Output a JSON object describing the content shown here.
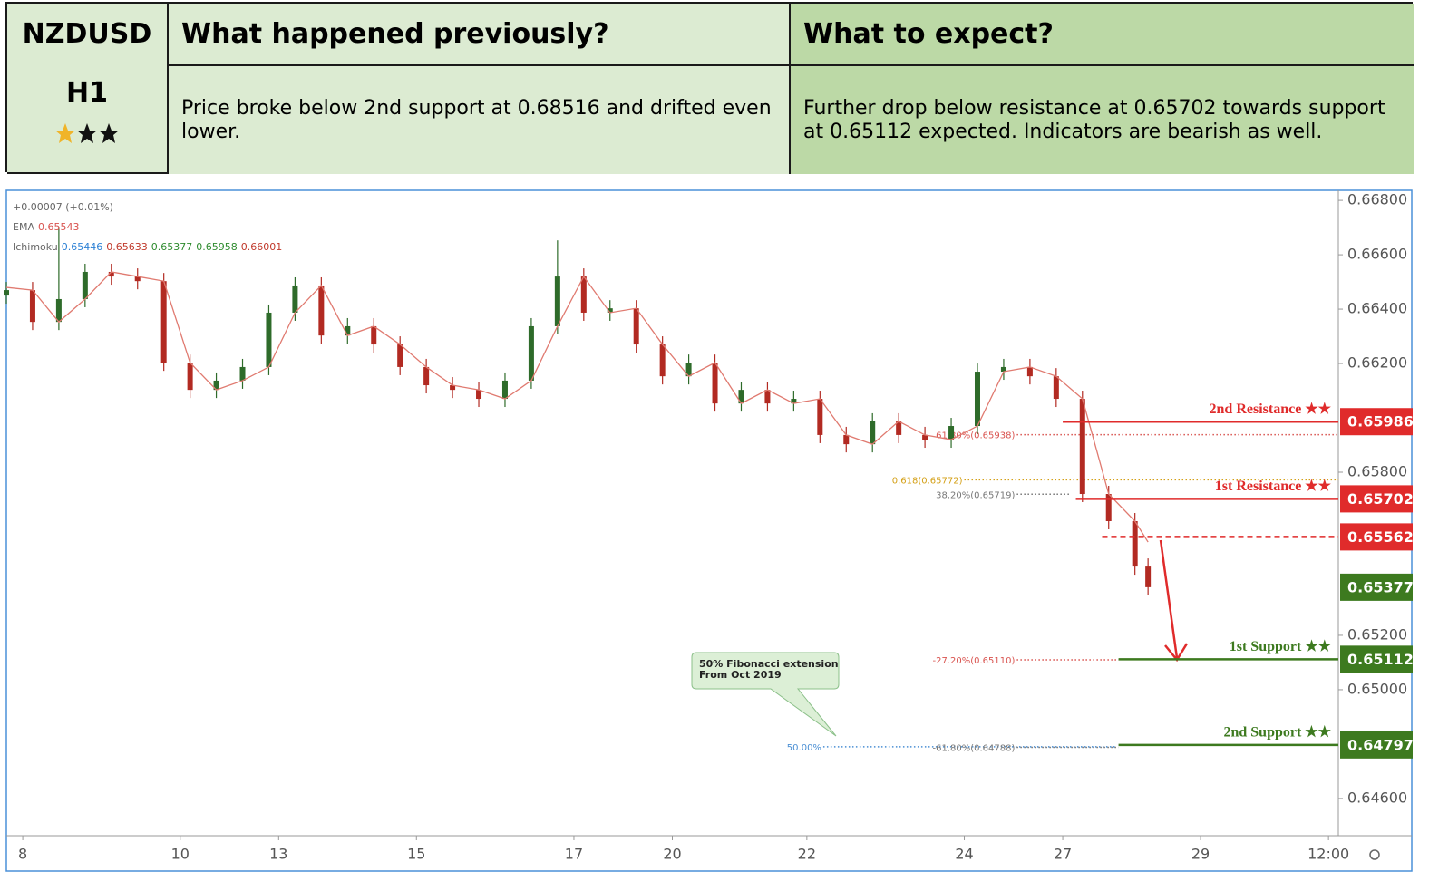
{
  "header": {
    "symbol": "NZDUSD",
    "timeframe": "H1",
    "previous_title": "What happened previously?",
    "expect_title": "What to expect?",
    "previous_text": "Price broke below 2nd support at 0.68516 and drifted even lower.",
    "expect_text": "Further drop below resistance at 0.65702 towards support at 0.65112 expected. Indicators are bearish as well."
  },
  "chart_data": {
    "type": "candlestick",
    "symbol_change": "+0.00007 (+0.01%)",
    "ema_legend": {
      "name": "EMA",
      "value": 0.65543,
      "color": "#d9534f"
    },
    "ichimoku_legend": {
      "name": "Ichimoku",
      "values": [
        0.65446,
        0.65633,
        0.65377,
        0.65958,
        0.66001
      ],
      "colors": [
        "#2a7fd4",
        "#c0392b",
        "#2e8b2e",
        "#2e8b2e",
        "#c0392b"
      ]
    },
    "x": [
      0,
      8,
      16,
      24,
      32,
      40,
      48,
      56,
      64,
      72,
      80,
      88,
      96,
      104,
      112,
      120,
      128,
      136,
      144,
      152,
      160,
      168,
      176,
      184,
      192,
      200,
      208,
      216,
      224,
      232,
      240,
      248,
      256,
      264,
      272,
      280,
      288,
      296,
      304,
      312,
      320,
      328,
      336,
      344,
      348
    ],
    "open": [
      0.6645,
      0.6647,
      0.66353,
      0.66437,
      0.66537,
      0.6652,
      0.66503,
      0.66203,
      0.66103,
      0.66137,
      0.66187,
      0.66387,
      0.66487,
      0.66303,
      0.66337,
      0.6627,
      0.66187,
      0.6612,
      0.66103,
      0.6607,
      0.66137,
      0.66337,
      0.6652,
      0.66387,
      0.66403,
      0.6627,
      0.66153,
      0.66203,
      0.66053,
      0.66103,
      0.66053,
      0.6607,
      0.65937,
      0.65903,
      0.65987,
      0.65937,
      0.6592,
      0.6597,
      0.6617,
      0.66187,
      0.66153,
      0.6607,
      0.6572,
      0.6562,
      0.65453
    ],
    "high": [
      0.665,
      0.665,
      0.66703,
      0.66567,
      0.66567,
      0.6655,
      0.66533,
      0.66233,
      0.66167,
      0.66217,
      0.66417,
      0.66517,
      0.66517,
      0.66367,
      0.66367,
      0.663,
      0.66217,
      0.6615,
      0.66133,
      0.66167,
      0.66367,
      0.66653,
      0.6655,
      0.66433,
      0.66433,
      0.663,
      0.66233,
      0.66233,
      0.66133,
      0.66133,
      0.661,
      0.661,
      0.65967,
      0.66017,
      0.66017,
      0.65967,
      0.66,
      0.662,
      0.66217,
      0.66217,
      0.66183,
      0.661,
      0.6575,
      0.6565,
      0.65483
    ],
    "low": [
      0.6642,
      0.66323,
      0.66323,
      0.66407,
      0.6649,
      0.66473,
      0.66173,
      0.66073,
      0.66073,
      0.66107,
      0.66157,
      0.66357,
      0.66273,
      0.66273,
      0.6624,
      0.66157,
      0.6609,
      0.66073,
      0.6604,
      0.6604,
      0.66107,
      0.66307,
      0.66357,
      0.66357,
      0.6624,
      0.66123,
      0.66123,
      0.66023,
      0.66023,
      0.66023,
      0.66023,
      0.65907,
      0.65873,
      0.65873,
      0.65907,
      0.6589,
      0.6589,
      0.6594,
      0.6614,
      0.66123,
      0.6604,
      0.6569,
      0.6559,
      0.65423,
      0.65347
    ],
    "close": [
      0.6647,
      0.66353,
      0.66437,
      0.66537,
      0.6652,
      0.66503,
      0.66203,
      0.66103,
      0.66137,
      0.66187,
      0.66387,
      0.66487,
      0.66303,
      0.66337,
      0.6627,
      0.66187,
      0.6612,
      0.66103,
      0.6607,
      0.66137,
      0.66337,
      0.6652,
      0.66387,
      0.66403,
      0.6627,
      0.66153,
      0.66203,
      0.66053,
      0.66103,
      0.66053,
      0.6607,
      0.65937,
      0.65903,
      0.65987,
      0.65937,
      0.6592,
      0.6597,
      0.6617,
      0.66187,
      0.66153,
      0.6607,
      0.6572,
      0.6562,
      0.65453,
      0.65377
    ],
    "ema": [
      0.6648,
      0.6647,
      0.66353,
      0.66437,
      0.66537,
      0.6652,
      0.66503,
      0.66203,
      0.66103,
      0.66137,
      0.66187,
      0.66387,
      0.66487,
      0.66303,
      0.66337,
      0.6627,
      0.66187,
      0.6612,
      0.66103,
      0.6607,
      0.66137,
      0.66337,
      0.6652,
      0.66387,
      0.66403,
      0.6627,
      0.66153,
      0.66203,
      0.66053,
      0.66103,
      0.66053,
      0.6607,
      0.65937,
      0.65903,
      0.65987,
      0.65937,
      0.6592,
      0.6597,
      0.6617,
      0.66187,
      0.66153,
      0.6607,
      0.6572,
      0.6562,
      0.65543
    ],
    "up_color": "#2e6b2a",
    "down_color": "#b22a22",
    "ema_color": "#e07a70",
    "xlim": [
      0,
      406
    ],
    "xticks": [
      {
        "value": 5,
        "label": "8"
      },
      {
        "value": 53,
        "label": "10"
      },
      {
        "value": 83,
        "label": "13"
      },
      {
        "value": 125,
        "label": "15"
      },
      {
        "value": 173,
        "label": "17"
      },
      {
        "value": 203,
        "label": "20"
      },
      {
        "value": 244,
        "label": "22"
      },
      {
        "value": 292,
        "label": "24"
      },
      {
        "value": 322,
        "label": "27"
      },
      {
        "value": 364,
        "label": "29"
      },
      {
        "value": 403,
        "label": "12:00"
      }
    ],
    "ylim": [
      0.64463,
      0.66837
    ],
    "yticks": [
      {
        "value": 0.668,
        "label": "0.66800"
      },
      {
        "value": 0.666,
        "label": "0.66600"
      },
      {
        "value": 0.664,
        "label": "0.66400"
      },
      {
        "value": 0.662,
        "label": "0.66200"
      },
      {
        "value": 0.658,
        "label": "0.65800"
      },
      {
        "value": 0.652,
        "label": "0.65200"
      },
      {
        "value": 0.65,
        "label": "0.65000"
      },
      {
        "value": 0.646,
        "label": "0.64600"
      }
    ],
    "levels": [
      {
        "name": "2nd Resistance ★★",
        "value": 0.65986,
        "color": "#e02b2b",
        "start": 322,
        "dashed": false
      },
      {
        "name": "1st Resistance ★★",
        "value": 0.65702,
        "color": "#e02b2b",
        "start": 326,
        "dashed": false
      },
      {
        "value": 0.65562,
        "color": "#e02b2b",
        "start": 334,
        "dashed": true
      },
      {
        "value": 0.65377,
        "color": "#3d7a1f"
      },
      {
        "name": "1st Support ★★",
        "value": 0.65112,
        "color": "#3d7a1f",
        "start": 339,
        "dashed": false
      },
      {
        "name": "2nd Support ★★",
        "value": 0.64797,
        "color": "#3d7a1f",
        "start": 339,
        "dashed": false
      }
    ],
    "fib": [
      {
        "label": "61.80%(0.65938)",
        "value": 0.65938,
        "color": "#d9534f",
        "start": 308,
        "end": 406
      },
      {
        "label": "0.618(0.65772)",
        "value": 0.65772,
        "color": "#d4a017",
        "start": 292,
        "end": 406
      },
      {
        "label": "38.20%(0.65719)",
        "value": 0.65719,
        "color": "#777777",
        "start": 308,
        "end": 324
      },
      {
        "label": "-27.20%(0.65110)",
        "value": 0.6511,
        "color": "#d9534f",
        "start": 308,
        "end": 339
      },
      {
        "label": "50.00%",
        "value": 0.6479,
        "color": "#4a8fd4",
        "start": 249,
        "end": 338
      },
      {
        "label": "-61.80%(0.64788)",
        "value": 0.64788,
        "color": "#777777",
        "start": 308,
        "end": 339
      }
    ],
    "annotation": [
      "50% Fibonacci extension",
      "From Oct 2019"
    ]
  }
}
